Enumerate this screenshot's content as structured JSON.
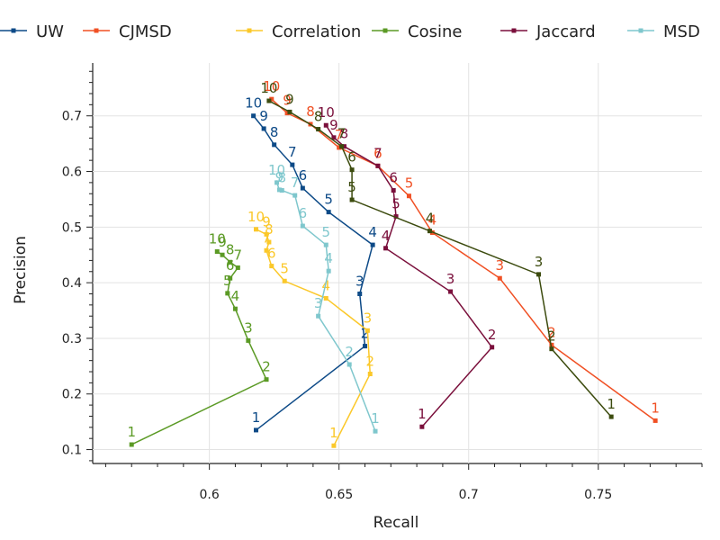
{
  "chart_data": {
    "type": "line",
    "xlabel": "Recall",
    "ylabel": "Precision",
    "xlim": [
      0.555,
      0.79
    ],
    "ylim": [
      0.075,
      0.795
    ],
    "xticks": [
      0.6,
      0.65,
      0.7,
      0.75
    ],
    "xtick_labels": [
      "0.6",
      "0.65",
      "0.7",
      "0.75"
    ],
    "yticks": [
      0.1,
      0.2,
      0.3,
      0.4,
      0.5,
      0.6,
      0.7
    ],
    "ytick_labels": [
      "0.1",
      "0.2",
      "0.3",
      "0.4",
      "0.5",
      "0.6",
      "0.7"
    ],
    "grid": true,
    "legend_position": "top",
    "point_labels": [
      "1",
      "2",
      "3",
      "4",
      "5",
      "6",
      "7",
      "8",
      "9",
      "10"
    ],
    "series": [
      {
        "name": "UW",
        "color": "#0d4a87",
        "x": [
          0.618,
          0.66,
          0.658,
          0.663,
          0.646,
          0.636,
          0.632,
          0.625,
          0.621,
          0.617
        ],
        "y": [
          0.135,
          0.286,
          0.38,
          0.468,
          0.527,
          0.57,
          0.612,
          0.648,
          0.677,
          0.7
        ]
      },
      {
        "name": "CJMSD",
        "color": "#f05024",
        "x": [
          0.772,
          0.732,
          0.712,
          0.686,
          0.677,
          0.665,
          0.65,
          0.639,
          0.63,
          0.624
        ],
        "y": [
          0.152,
          0.288,
          0.408,
          0.49,
          0.556,
          0.61,
          0.643,
          0.685,
          0.705,
          0.73
        ]
      },
      {
        "name": "Correlation",
        "color": "#fbc82a",
        "x": [
          0.648,
          0.662,
          0.661,
          0.645,
          0.629,
          0.624,
          0.622,
          0.623,
          0.622,
          0.618
        ],
        "y": [
          0.107,
          0.236,
          0.314,
          0.372,
          0.403,
          0.43,
          0.458,
          0.473,
          0.487,
          0.496
        ]
      },
      {
        "name": "Cosine",
        "color": "#5b9a25",
        "x": [
          0.57,
          0.622,
          0.615,
          0.61,
          0.607,
          0.608,
          0.611,
          0.608,
          0.605,
          0.603
        ],
        "y": [
          0.109,
          0.226,
          0.296,
          0.353,
          0.381,
          0.408,
          0.427,
          0.437,
          0.45,
          0.456
        ]
      },
      {
        "name": "Jaccard",
        "color": "#7a0f3b",
        "x": [
          0.682,
          0.709,
          0.693,
          0.668,
          0.672,
          0.671,
          0.665,
          0.652,
          0.648,
          0.645
        ],
        "y": [
          0.141,
          0.284,
          0.384,
          0.462,
          0.519,
          0.566,
          0.61,
          0.645,
          0.661,
          0.683
        ]
      },
      {
        "name": "MSD",
        "color": "#7fc7cd",
        "x": [
          0.664,
          0.654,
          0.642,
          0.646,
          0.645,
          0.636,
          0.633,
          0.628,
          0.627,
          0.626
        ],
        "y": [
          0.133,
          0.253,
          0.34,
          0.421,
          0.468,
          0.502,
          0.557,
          0.566,
          0.567,
          0.58
        ]
      },
      {
        "name": "",
        "color": "#3c4b0e",
        "x": [
          0.755,
          0.732,
          0.727,
          0.685,
          0.655,
          0.655,
          0.651,
          0.642,
          0.631,
          0.623
        ],
        "y": [
          0.159,
          0.281,
          0.415,
          0.493,
          0.549,
          0.603,
          0.645,
          0.676,
          0.707,
          0.727
        ]
      }
    ]
  }
}
